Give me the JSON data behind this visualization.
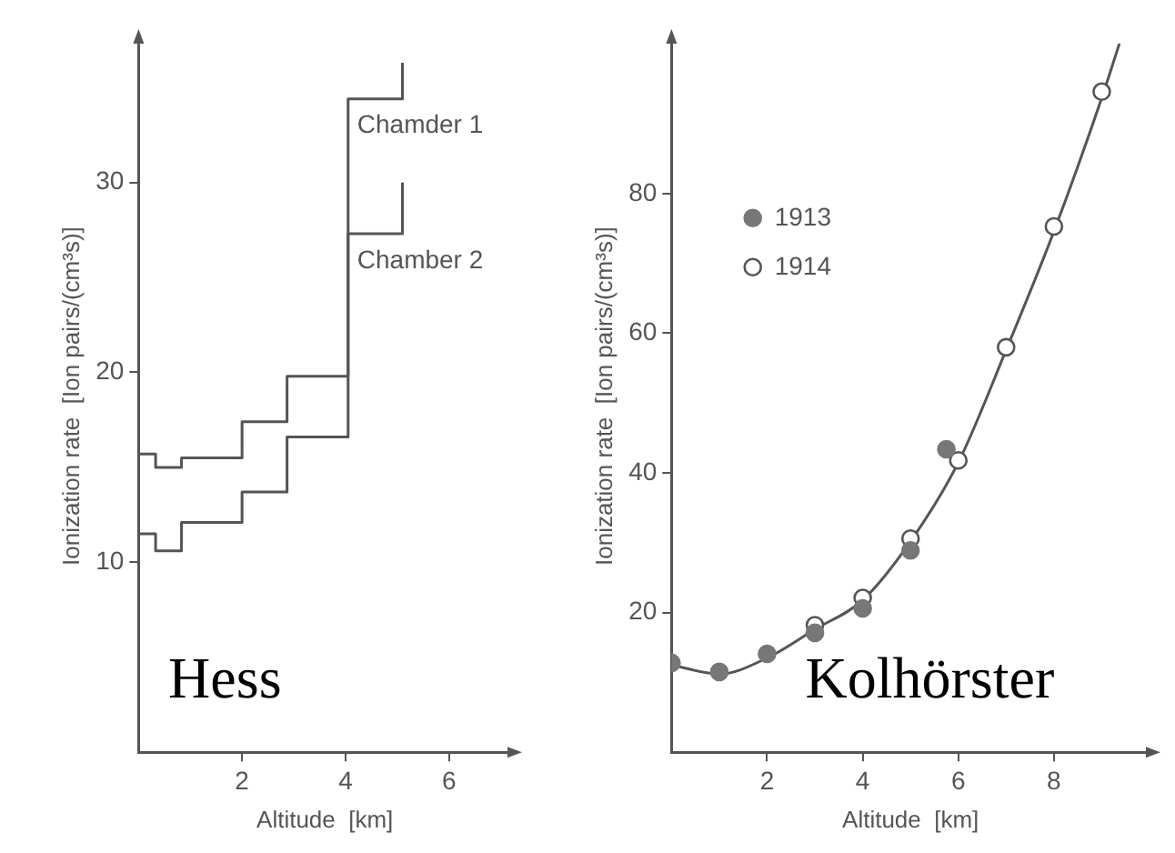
{
  "chart_data": [
    {
      "type": "step",
      "xlabel": "Altitude  [km]",
      "ylabel": "Ionization rate  [Ion pairs/(cm³s)]",
      "xlim": [
        0,
        7.2
      ],
      "xticks": [
        2,
        4,
        6
      ],
      "ylim": [
        0,
        37.5
      ],
      "yticks": [
        10,
        20,
        30
      ],
      "grid": false,
      "legend": false,
      "marker": "none",
      "annotations": [
        "Hess"
      ],
      "series": [
        {
          "name": "Chamder 1",
          "color": "#555555",
          "x": [
            0,
            0.33,
            0.83,
            2,
            2.87,
            4.05,
            5.1
          ],
          "values": [
            15.7,
            15.0,
            15.5,
            17.4,
            19.8,
            34.4,
            36.3
          ]
        },
        {
          "name": "Chamber 2",
          "color": "#555555",
          "x": [
            0,
            0.33,
            0.83,
            2,
            2.87,
            4.05,
            5.1
          ],
          "values": [
            11.5,
            10.6,
            12.1,
            13.7,
            16.6,
            27.3,
            30.0
          ]
        }
      ]
    },
    {
      "type": "scatter",
      "xlabel": "Altitude  [km]",
      "ylabel": "Ionization rate  [Ion pairs/(cm³s)]",
      "xlim": [
        0,
        10
      ],
      "xticks": [
        2,
        4,
        6,
        8
      ],
      "ylim": [
        0,
        102
      ],
      "yticks": [
        20,
        40,
        60,
        80
      ],
      "grid": false,
      "legend": "top left",
      "annotations": [
        "Kolhörster"
      ],
      "series": [
        {
          "name": "1913",
          "color": "#777777",
          "marker": "circle",
          "x": [
            0,
            1,
            2,
            3,
            4,
            5,
            5.75
          ],
          "values": [
            12.8,
            11.5,
            14.1,
            17.1,
            20.6,
            28.9,
            43.4
          ]
        },
        {
          "name": "1914",
          "color": "#555555",
          "marker": "circle-open",
          "x": [
            3,
            4,
            5,
            6,
            7,
            8,
            9
          ],
          "values": [
            18.2,
            22.1,
            30.6,
            41.8,
            58,
            75.3,
            94.6
          ]
        },
        {
          "type": "line",
          "color": "#555555",
          "marker": "none",
          "x": [
            0,
            1,
            2,
            3,
            4,
            5,
            6,
            7,
            8,
            9,
            9.37
          ],
          "values": [
            12.5,
            11.2,
            13.5,
            17.6,
            21.8,
            30.2,
            41.5,
            57.6,
            74.6,
            93.7,
            101.5
          ]
        }
      ]
    }
  ]
}
